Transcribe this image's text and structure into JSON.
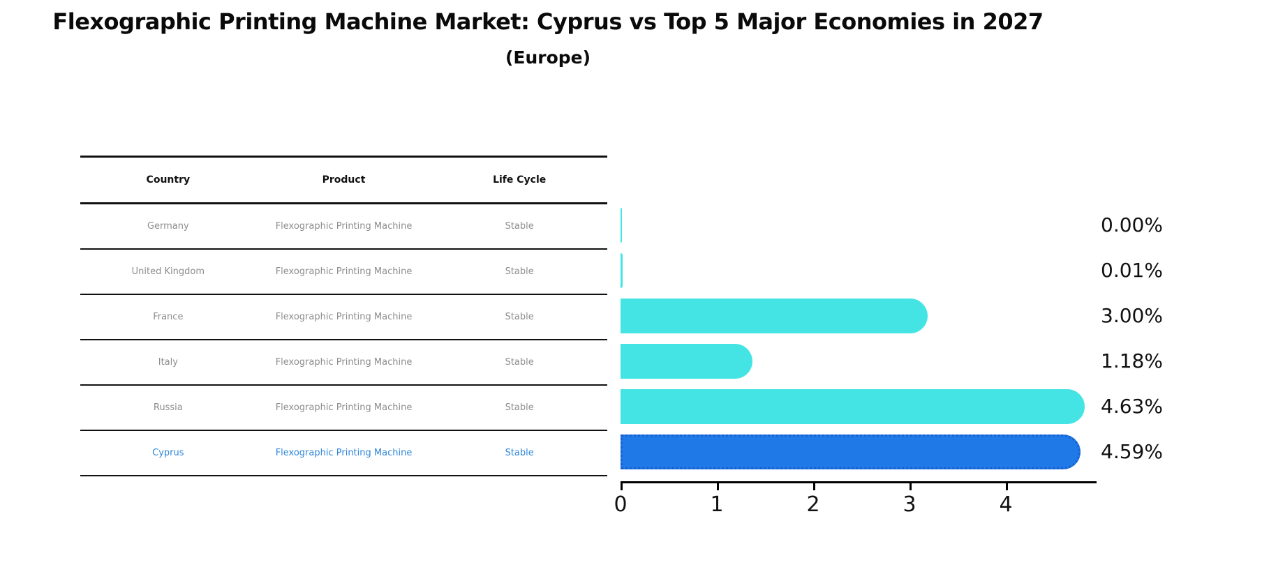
{
  "title": "Flexographic Printing Machine Market: Cyprus vs Top 5 Major Economies in 2027",
  "subtitle": "(Europe)",
  "table": {
    "headers": [
      "Country",
      "Product",
      "Life Cycle"
    ],
    "rows": [
      {
        "country": "Germany",
        "product": "Flexographic Printing Machine",
        "life_cycle": "Stable",
        "highlight": false
      },
      {
        "country": "United Kingdom",
        "product": "Flexographic Printing Machine",
        "life_cycle": "Stable",
        "highlight": false
      },
      {
        "country": "France",
        "product": "Flexographic Printing Machine",
        "life_cycle": "Stable",
        "highlight": false
      },
      {
        "country": "Italy",
        "product": "Flexographic Printing Machine",
        "life_cycle": "Stable",
        "highlight": false
      },
      {
        "country": "Russia",
        "product": "Flexographic Printing Machine",
        "life_cycle": "Stable",
        "highlight": false
      },
      {
        "country": "Cyprus",
        "product": "Flexographic Printing Machine",
        "life_cycle": "Stable",
        "highlight": true
      }
    ]
  },
  "chart_data": {
    "type": "bar",
    "orientation": "horizontal",
    "title": "Flexographic Printing Machine Market: Cyprus vs Top 5 Major Economies in 2027 (Europe)",
    "categories": [
      "Germany",
      "United Kingdom",
      "France",
      "Italy",
      "Russia",
      "Cyprus"
    ],
    "values": [
      0.0,
      0.01,
      3.0,
      1.18,
      4.63,
      4.59
    ],
    "value_labels": [
      "0.00%",
      "0.01%",
      "3.00%",
      "1.18%",
      "4.63%",
      "4.59%"
    ],
    "unit": "percent",
    "xticks": [
      0,
      1,
      2,
      3,
      4
    ],
    "xlim": [
      0,
      4.92
    ],
    "grid": false,
    "legend": false,
    "highlight_index": 5,
    "bar_color": "#44E4E4",
    "highlight_color": "#1F7AE8",
    "highlight_border_color": "#1A5FD0"
  },
  "colors": {
    "background": "#FFFFFF",
    "table_text": "#8C8C8C",
    "highlight_text": "#2E86D9",
    "axis": "#000000",
    "label_text": "#111111"
  }
}
